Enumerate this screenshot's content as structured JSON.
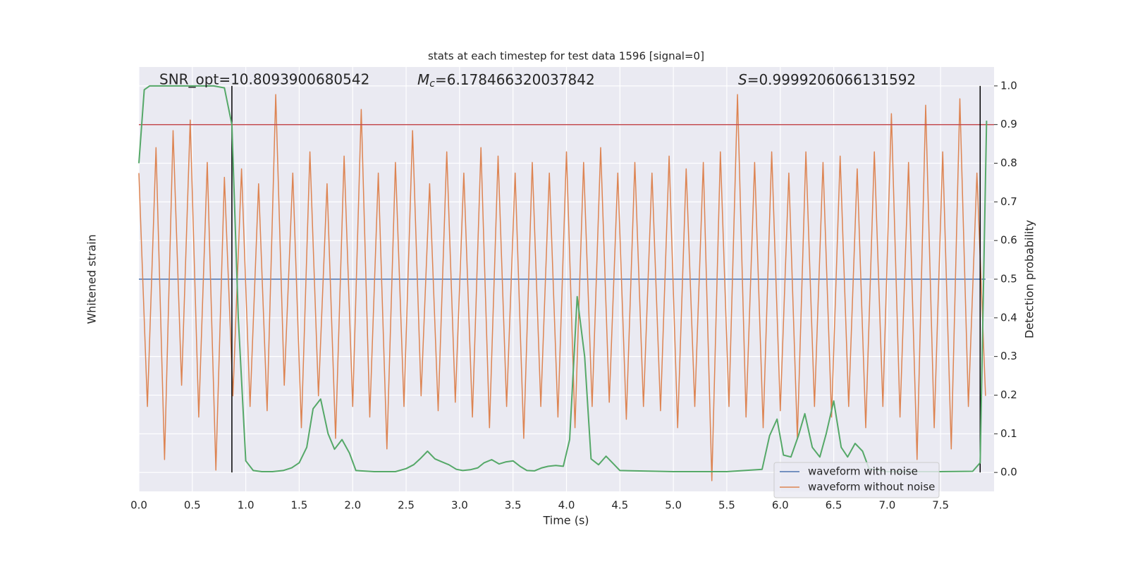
{
  "chart_data": {
    "type": "line",
    "title": "stats at each timestep for test data 1596 [signal=0]",
    "annotations": [
      {
        "text": "SNR_opt=10.8093900680542"
      },
      {
        "symbol": "M",
        "subscript": "c",
        "text": "=6.178466320037842"
      },
      {
        "symbol": "S",
        "text": "=0.9999206066131592"
      }
    ],
    "xlabel": "Time (s)",
    "ylabel": "Whitened strain",
    "y2label": "Detection probability",
    "xlim": [
      0,
      8
    ],
    "xticks": [
      {
        "value": 0,
        "label": "0.0"
      },
      {
        "value": 0.5,
        "label": "0.5"
      },
      {
        "value": 1,
        "label": "1.0"
      },
      {
        "value": 1.5,
        "label": "1.5"
      },
      {
        "value": 2,
        "label": "2.0"
      },
      {
        "value": 2.5,
        "label": "2.5"
      },
      {
        "value": 3,
        "label": "3.0"
      },
      {
        "value": 3.5,
        "label": "3.5"
      },
      {
        "value": 4,
        "label": "4.0"
      },
      {
        "value": 4.5,
        "label": "4.5"
      },
      {
        "value": 5,
        "label": "5.0"
      },
      {
        "value": 5.5,
        "label": "5.5"
      },
      {
        "value": 6,
        "label": "6.0"
      },
      {
        "value": 6.5,
        "label": "6.5"
      },
      {
        "value": 7,
        "label": "7.0"
      },
      {
        "value": 7.5,
        "label": "7.5"
      }
    ],
    "ylim": [
      -1,
      1
    ],
    "y2lim": [
      -0.049,
      1.049
    ],
    "y2ticks": [
      {
        "value": 0,
        "label": "0.0"
      },
      {
        "value": 0.1,
        "label": "0.1"
      },
      {
        "value": 0.2,
        "label": "0.2"
      },
      {
        "value": 0.3,
        "label": "0.3"
      },
      {
        "value": 0.4,
        "label": "0.4"
      },
      {
        "value": 0.5,
        "label": "0.5"
      },
      {
        "value": 0.6,
        "label": "0.6"
      },
      {
        "value": 0.7,
        "label": "0.7"
      },
      {
        "value": 0.8,
        "label": "0.8"
      },
      {
        "value": 0.9,
        "label": "0.9"
      },
      {
        "value": 1,
        "label": "1.0"
      }
    ],
    "grid": true,
    "legend": "lower right",
    "threshold": {
      "value": 0.9,
      "color": "#c44e52",
      "axis": "y2"
    },
    "vlines": [
      {
        "x": 0.87,
        "color": "#000000"
      },
      {
        "x": 7.87,
        "color": "#000000"
      }
    ],
    "x": [
      0,
      0.08,
      0.16,
      0.24,
      0.32,
      0.4,
      0.48,
      0.56,
      0.64,
      0.72,
      0.8,
      0.88,
      0.96,
      1.04,
      1.12,
      1.2,
      1.28,
      1.36,
      1.44,
      1.52,
      1.6,
      1.68,
      1.76,
      1.84,
      1.92,
      2,
      2.08,
      2.16,
      2.24,
      2.32,
      2.4,
      2.48,
      2.56,
      2.64,
      2.72,
      2.8,
      2.88,
      2.96,
      3.04,
      3.12,
      3.2,
      3.28,
      3.36,
      3.44,
      3.52,
      3.6,
      3.68,
      3.76,
      3.84,
      3.92,
      4,
      4.08,
      4.16,
      4.24,
      4.32,
      4.4,
      4.48,
      4.56,
      4.64,
      4.72,
      4.8,
      4.88,
      4.96,
      5.04,
      5.12,
      5.2,
      5.28,
      5.36,
      5.44,
      5.52,
      5.6,
      5.68,
      5.76,
      5.84,
      5.92,
      6,
      6.08,
      6.16,
      6.24,
      6.32,
      6.4,
      6.48,
      6.56,
      6.64,
      6.72,
      6.8,
      6.88,
      6.96,
      7.04,
      7.12,
      7.2,
      7.28,
      7.36,
      7.44,
      7.52,
      7.6,
      7.68,
      7.76,
      7.84,
      7.92
    ],
    "series": [
      {
        "name": "waveform with noise",
        "color": "#4c72b0",
        "values": [
          0,
          0,
          0,
          0,
          0,
          0,
          0,
          0,
          0,
          0,
          0,
          0,
          0,
          0,
          0,
          0,
          0,
          0,
          0,
          0,
          0,
          0,
          0,
          0,
          0,
          0,
          0,
          0,
          0,
          0,
          0,
          0,
          0,
          0,
          0,
          0,
          0,
          0,
          0,
          0,
          0,
          0,
          0,
          0,
          0,
          0,
          0,
          0,
          0,
          0,
          0,
          0,
          0,
          0,
          0,
          0,
          0,
          0,
          0,
          0,
          0,
          0,
          0,
          0,
          0,
          0,
          0,
          0,
          0,
          0,
          0,
          0,
          0,
          0,
          0,
          0,
          0,
          0,
          0,
          0,
          0,
          0,
          0,
          0,
          0,
          0,
          0,
          0,
          0,
          0,
          0,
          0,
          0,
          0,
          0,
          0,
          0,
          0,
          0,
          0
        ]
      },
      {
        "name": "waveform without noise",
        "color": "#dd8452",
        "values": [
          0.5,
          -0.6,
          0.62,
          -0.85,
          0.7,
          -0.5,
          0.75,
          -0.65,
          0.55,
          -0.9,
          0.48,
          -0.55,
          0.52,
          -0.6,
          0.45,
          -0.62,
          0.87,
          -0.5,
          0.5,
          -0.7,
          0.6,
          -0.55,
          0.45,
          -0.75,
          0.58,
          -0.6,
          0.8,
          -0.65,
          0.5,
          -0.8,
          0.55,
          -0.6,
          0.7,
          -0.55,
          0.45,
          -0.62,
          0.6,
          -0.58,
          0.5,
          -0.65,
          0.62,
          -0.7,
          0.58,
          -0.6,
          0.5,
          -0.75,
          0.55,
          -0.6,
          0.5,
          -0.65,
          0.6,
          -0.7,
          0.55,
          -0.6,
          0.62,
          -0.58,
          0.5,
          -0.66,
          0.55,
          -0.6,
          0.5,
          -0.62,
          0.58,
          -0.7,
          0.52,
          -0.6,
          0.55,
          -0.95,
          0.6,
          -0.6,
          0.87,
          -0.65,
          0.55,
          -0.7,
          0.6,
          -0.62,
          0.5,
          -0.75,
          0.6,
          -0.6,
          0.55,
          -0.65,
          0.58,
          -0.6,
          0.52,
          -0.7,
          0.6,
          -0.6,
          0.78,
          -0.65,
          0.55,
          -0.85,
          0.82,
          -0.7,
          0.6,
          -0.8,
          0.85,
          -0.6,
          0.5,
          -0.55
        ]
      }
    ],
    "probability": {
      "color": "#55a868",
      "axis": "y2",
      "x": [
        0,
        0.05,
        0.1,
        0.2,
        0.3,
        0.4,
        0.5,
        0.6,
        0.7,
        0.8,
        0.87,
        0.93,
        1.0,
        1.07,
        1.15,
        1.25,
        1.35,
        1.43,
        1.5,
        1.57,
        1.63,
        1.7,
        1.77,
        1.83,
        1.9,
        1.97,
        2.03,
        2.2,
        2.4,
        2.5,
        2.57,
        2.63,
        2.7,
        2.77,
        2.83,
        2.9,
        2.97,
        3.03,
        3.1,
        3.17,
        3.23,
        3.3,
        3.37,
        3.43,
        3.5,
        3.57,
        3.63,
        3.7,
        3.77,
        3.83,
        3.9,
        3.97,
        4.03,
        4.1,
        4.17,
        4.23,
        4.3,
        4.37,
        4.43,
        4.5,
        5.0,
        5.5,
        5.83,
        5.9,
        5.97,
        6.03,
        6.1,
        6.17,
        6.23,
        6.3,
        6.37,
        6.43,
        6.5,
        6.57,
        6.63,
        6.7,
        6.77,
        6.83,
        7.0,
        7.5,
        7.8,
        7.87,
        7.93
      ],
      "values": [
        0.8,
        0.99,
        1.0,
        1.0,
        1.0,
        1.0,
        1.0,
        1.0,
        1.0,
        0.995,
        0.9,
        0.4,
        0.03,
        0.005,
        0.002,
        0.002,
        0.005,
        0.012,
        0.025,
        0.065,
        0.165,
        0.19,
        0.1,
        0.06,
        0.085,
        0.05,
        0.005,
        0.002,
        0.002,
        0.01,
        0.02,
        0.035,
        0.055,
        0.035,
        0.028,
        0.02,
        0.008,
        0.005,
        0.007,
        0.012,
        0.025,
        0.033,
        0.022,
        0.027,
        0.03,
        0.015,
        0.005,
        0.004,
        0.012,
        0.016,
        0.018,
        0.016,
        0.085,
        0.455,
        0.3,
        0.035,
        0.02,
        0.042,
        0.025,
        0.005,
        0.002,
        0.002,
        0.008,
        0.095,
        0.138,
        0.045,
        0.04,
        0.095,
        0.152,
        0.065,
        0.04,
        0.1,
        0.185,
        0.065,
        0.04,
        0.075,
        0.055,
        0.01,
        0.002,
        0.002,
        0.003,
        0.025,
        0.91
      ]
    }
  }
}
